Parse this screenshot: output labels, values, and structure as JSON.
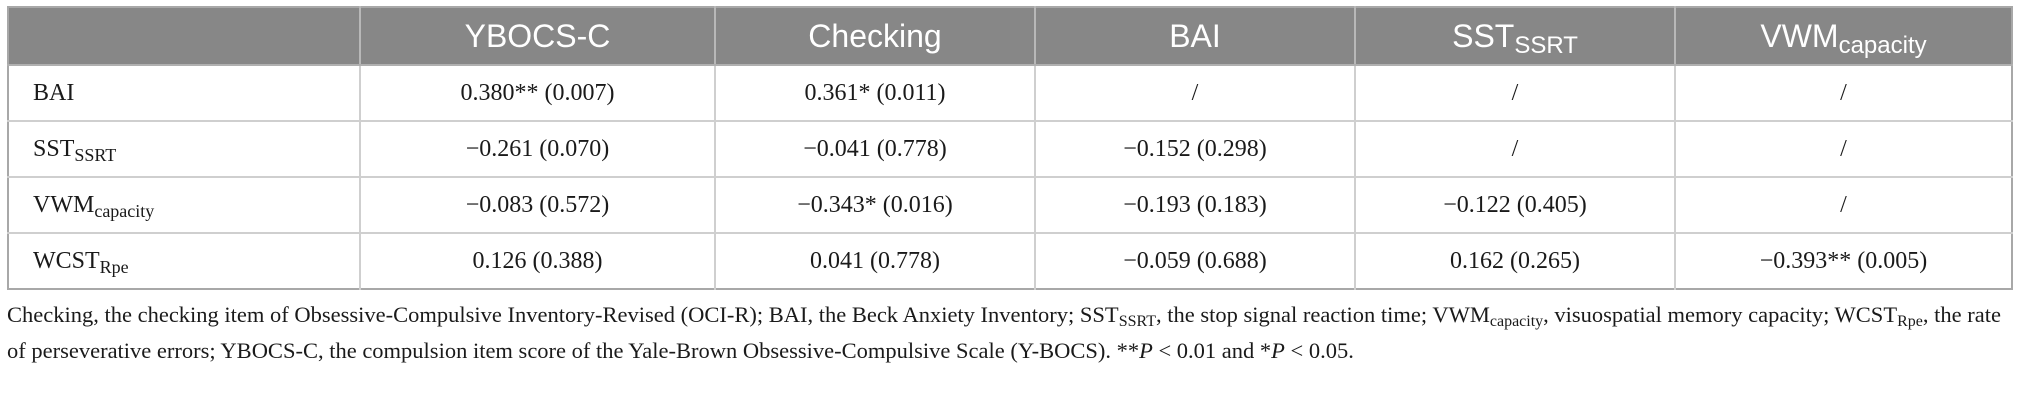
{
  "table": {
    "columns": [
      {
        "base": "",
        "sub": ""
      },
      {
        "base": "YBOCS-C",
        "sub": ""
      },
      {
        "base": "Checking",
        "sub": ""
      },
      {
        "base": "BAI",
        "sub": ""
      },
      {
        "base": "SST",
        "sub": "SSRT"
      },
      {
        "base": "VWM",
        "sub": "capacity"
      }
    ],
    "rows": [
      {
        "label": {
          "base": "BAI",
          "sub": ""
        },
        "cells": [
          "0.380** (0.007)",
          "0.361* (0.011)",
          "/",
          "/",
          "/"
        ]
      },
      {
        "label": {
          "base": "SST",
          "sub": "SSRT"
        },
        "cells": [
          "−0.261 (0.070)",
          "−0.041 (0.778)",
          "−0.152 (0.298)",
          "/",
          "/"
        ]
      },
      {
        "label": {
          "base": "VWM",
          "sub": "capacity"
        },
        "cells": [
          "−0.083 (0.572)",
          "−0.343* (0.016)",
          "−0.193 (0.183)",
          "−0.122 (0.405)",
          "/"
        ]
      },
      {
        "label": {
          "base": "WCST",
          "sub": "Rpe"
        },
        "cells": [
          "0.126 (0.388)",
          "0.041 (0.778)",
          "−0.059 (0.688)",
          "0.162 (0.265)",
          "−0.393** (0.005)"
        ]
      }
    ]
  },
  "footnote": {
    "t1": "Checking, the checking item of Obsessive-Compulsive Inventory-Revised (OCI-R); BAI, the Beck Anxiety Inventory; SST",
    "s1": "SSRT",
    "t2": ", the stop signal reaction time; VWM",
    "s2": "capacity",
    "t3": ", visuospatial memory capacity; WCST",
    "s3": "Rpe",
    "t4": ", the rate of perseverative errors; YBOCS-C, the compulsion item score of the Yale-Brown Obsessive-Compulsive Scale (Y-BOCS). **",
    "p1": "P",
    "t5": " < 0.01 and *",
    "p2": "P",
    "t6": " < 0.05."
  }
}
